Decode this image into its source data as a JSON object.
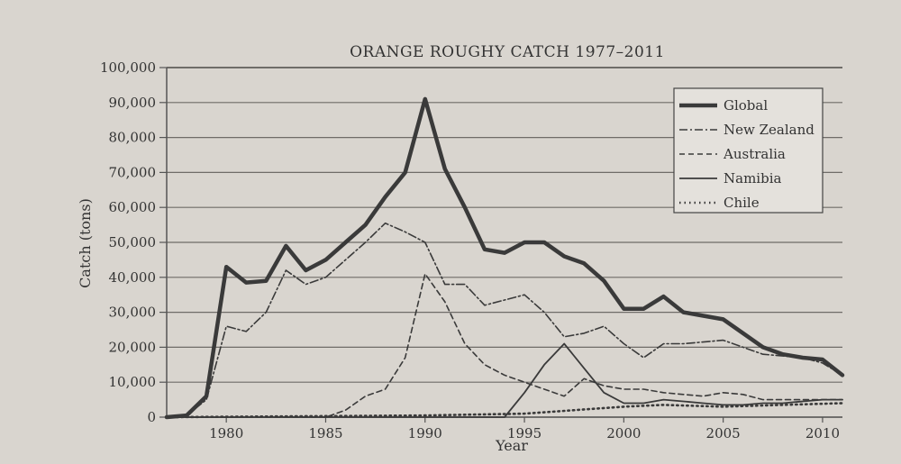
{
  "chart_data": {
    "type": "line",
    "title": "ORANGE ROUGHY CATCH 1977–2011",
    "xlabel": "Year",
    "ylabel": "Catch (tons)",
    "xlim": [
      1977,
      2011
    ],
    "ylim": [
      0,
      100000
    ],
    "x_ticks": [
      1980,
      1985,
      1990,
      1995,
      2000,
      2005,
      2010
    ],
    "y_ticks": [
      "0",
      "10,000",
      "20,000",
      "30,000",
      "40,000",
      "50,000",
      "60,000",
      "70,000",
      "80,000",
      "90,000",
      "100,000"
    ],
    "grid": true,
    "legend_position": "top-right",
    "series": [
      {
        "name": "Global",
        "style": "solid-thick",
        "color": "#3a3a3a",
        "points": [
          [
            1977,
            0
          ],
          [
            1978,
            500
          ],
          [
            1979,
            6000
          ],
          [
            1980,
            43000
          ],
          [
            1981,
            38500
          ],
          [
            1982,
            39000
          ],
          [
            1983,
            49000
          ],
          [
            1984,
            42000
          ],
          [
            1985,
            45000
          ],
          [
            1986,
            50000
          ],
          [
            1987,
            55000
          ],
          [
            1988,
            63000
          ],
          [
            1989,
            70000
          ],
          [
            1990,
            91000
          ],
          [
            1991,
            71000
          ],
          [
            1992,
            60000
          ],
          [
            1993,
            48000
          ],
          [
            1994,
            47000
          ],
          [
            1995,
            50000
          ],
          [
            1996,
            50000
          ],
          [
            1997,
            46000
          ],
          [
            1998,
            44000
          ],
          [
            1999,
            39000
          ],
          [
            2000,
            31000
          ],
          [
            2001,
            31000
          ],
          [
            2002,
            34500
          ],
          [
            2003,
            30000
          ],
          [
            2004,
            29000
          ],
          [
            2005,
            28000
          ],
          [
            2006,
            24000
          ],
          [
            2007,
            20000
          ],
          [
            2008,
            18000
          ],
          [
            2009,
            17000
          ],
          [
            2010,
            16500
          ],
          [
            2011,
            12000
          ]
        ]
      },
      {
        "name": "New Zealand",
        "style": "dash-dot",
        "color": "#3a3a3a",
        "points": [
          [
            1977,
            0
          ],
          [
            1978,
            500
          ],
          [
            1979,
            5000
          ],
          [
            1980,
            26000
          ],
          [
            1981,
            24500
          ],
          [
            1982,
            30000
          ],
          [
            1983,
            42000
          ],
          [
            1984,
            38000
          ],
          [
            1985,
            40000
          ],
          [
            1986,
            45000
          ],
          [
            1987,
            50000
          ],
          [
            1988,
            55500
          ],
          [
            1989,
            53000
          ],
          [
            1990,
            50000
          ],
          [
            1991,
            38000
          ],
          [
            1992,
            38000
          ],
          [
            1993,
            32000
          ],
          [
            1994,
            33500
          ],
          [
            1995,
            35000
          ],
          [
            1996,
            30000
          ],
          [
            1997,
            23000
          ],
          [
            1998,
            24000
          ],
          [
            1999,
            26000
          ],
          [
            2000,
            21000
          ],
          [
            2001,
            17000
          ],
          [
            2002,
            21000
          ],
          [
            2003,
            21000
          ],
          [
            2004,
            21500
          ],
          [
            2005,
            22000
          ],
          [
            2006,
            20000
          ],
          [
            2007,
            18000
          ],
          [
            2008,
            17500
          ],
          [
            2009,
            17000
          ],
          [
            2010,
            15500
          ],
          [
            2011,
            12000
          ]
        ]
      },
      {
        "name": "Australia",
        "style": "dashed",
        "color": "#3a3a3a",
        "points": [
          [
            1977,
            0
          ],
          [
            1985,
            0
          ],
          [
            1986,
            2000
          ],
          [
            1987,
            6000
          ],
          [
            1988,
            8000
          ],
          [
            1989,
            17000
          ],
          [
            1990,
            41000
          ],
          [
            1991,
            33000
          ],
          [
            1992,
            21000
          ],
          [
            1993,
            15000
          ],
          [
            1994,
            12000
          ],
          [
            1995,
            10000
          ],
          [
            1996,
            8000
          ],
          [
            1997,
            6000
          ],
          [
            1998,
            11000
          ],
          [
            1999,
            9000
          ],
          [
            2000,
            8000
          ],
          [
            2001,
            8000
          ],
          [
            2002,
            7000
          ],
          [
            2003,
            6500
          ],
          [
            2004,
            6000
          ],
          [
            2005,
            7000
          ],
          [
            2006,
            6500
          ],
          [
            2007,
            5000
          ],
          [
            2008,
            5000
          ],
          [
            2009,
            5000
          ],
          [
            2010,
            5000
          ],
          [
            2011,
            5000
          ]
        ]
      },
      {
        "name": "Namibia",
        "style": "solid",
        "color": "#3a3a3a",
        "points": [
          [
            1977,
            0
          ],
          [
            1994,
            0
          ],
          [
            1995,
            7000
          ],
          [
            1996,
            15000
          ],
          [
            1997,
            21000
          ],
          [
            1998,
            14000
          ],
          [
            1999,
            7000
          ],
          [
            2000,
            4000
          ],
          [
            2001,
            4000
          ],
          [
            2002,
            5000
          ],
          [
            2003,
            4500
          ],
          [
            2004,
            4000
          ],
          [
            2005,
            3500
          ],
          [
            2006,
            3500
          ],
          [
            2007,
            4000
          ],
          [
            2008,
            4000
          ],
          [
            2009,
            4500
          ],
          [
            2010,
            5000
          ],
          [
            2011,
            5000
          ]
        ]
      },
      {
        "name": "Chile",
        "style": "dotted",
        "color": "#3a3a3a",
        "points": [
          [
            1977,
            0
          ],
          [
            1990,
            500
          ],
          [
            1995,
            1000
          ],
          [
            2000,
            3000
          ],
          [
            2002,
            3500
          ],
          [
            2005,
            3000
          ],
          [
            2008,
            3500
          ],
          [
            2011,
            4000
          ]
        ]
      }
    ]
  }
}
